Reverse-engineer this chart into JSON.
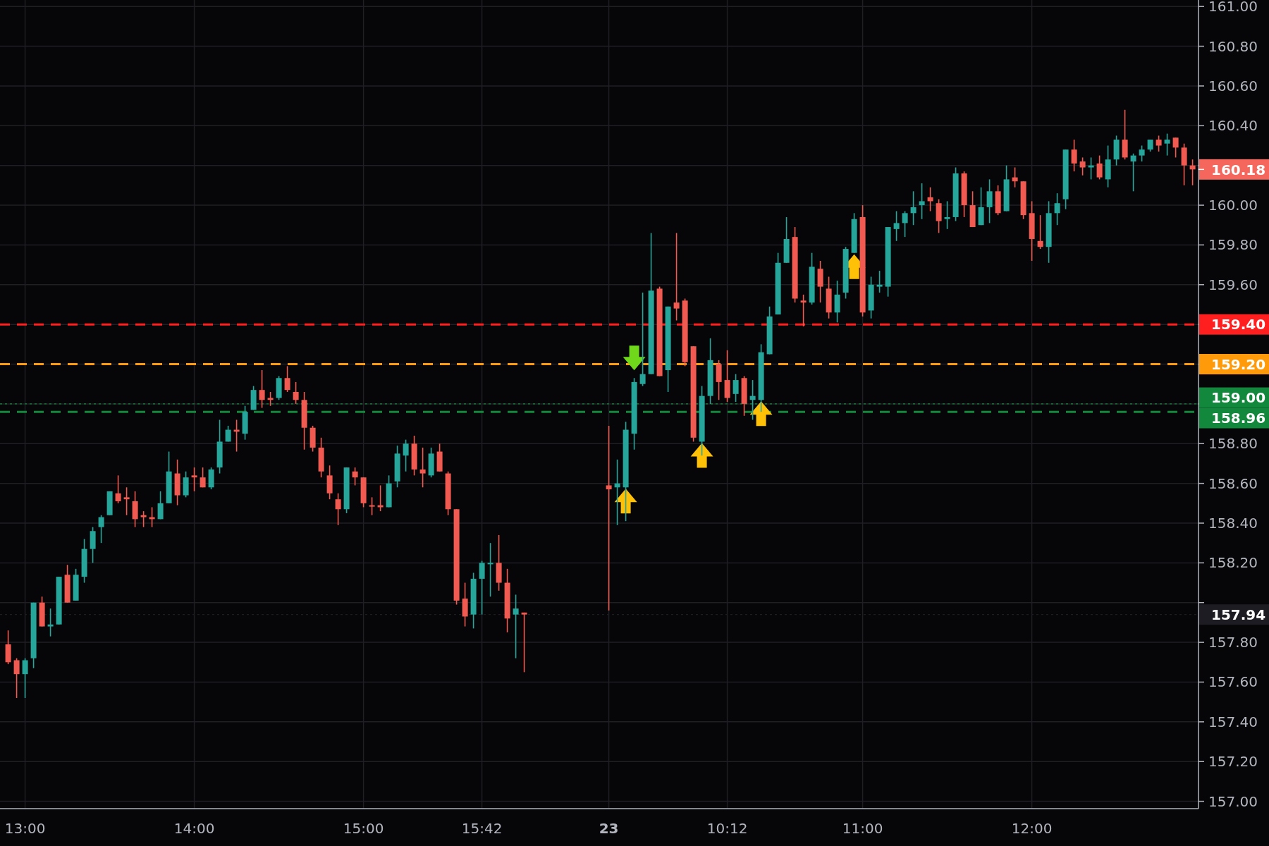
{
  "chart_data": {
    "type": "candlestick",
    "categories": [
      null,
      null,
      "13:00",
      null,
      null,
      null,
      null,
      null,
      null,
      null,
      null,
      null,
      null,
      null,
      null,
      null,
      null,
      null,
      null,
      null,
      null,
      null,
      "14:00",
      null,
      null,
      null,
      null,
      null,
      null,
      null,
      null,
      null,
      null,
      null,
      null,
      null,
      null,
      null,
      null,
      null,
      null,
      null,
      "15:00",
      null,
      null,
      null,
      null,
      null,
      null,
      null,
      null,
      null,
      null,
      null,
      null,
      null,
      "15:42",
      null,
      null,
      null,
      null,
      null,
      null,
      null,
      null,
      null,
      null,
      null,
      null,
      null,
      null,
      "23",
      null,
      null,
      null,
      null,
      null,
      null,
      null,
      null,
      null,
      null,
      null,
      null,
      null,
      "10:12",
      null,
      null,
      null,
      null,
      null,
      null,
      null,
      null,
      null,
      null,
      null,
      null,
      null,
      null,
      null,
      "11:00",
      null,
      null,
      null,
      null,
      null,
      null,
      null,
      null,
      null,
      null,
      null,
      null,
      null,
      null,
      null,
      null,
      null,
      null,
      null,
      "12:00",
      null,
      null,
      null,
      null,
      null,
      null,
      null,
      null,
      null,
      null,
      null,
      null,
      null,
      null,
      null,
      null,
      null,
      null,
      null
    ],
    "ohlc": [
      [
        157.79,
        157.86,
        157.69,
        157.7
      ],
      [
        157.71,
        157.72,
        157.52,
        157.64
      ],
      [
        157.64,
        157.72,
        157.52,
        157.71
      ],
      [
        157.72,
        158.0,
        157.67,
        158.0
      ],
      [
        158.0,
        158.03,
        157.88,
        157.88
      ],
      [
        157.88,
        157.97,
        157.83,
        157.89
      ],
      [
        157.89,
        158.13,
        157.89,
        158.13
      ],
      [
        158.14,
        158.19,
        158.0,
        158.0
      ],
      [
        158.01,
        158.17,
        158.01,
        158.14
      ],
      [
        158.13,
        158.32,
        158.1,
        158.27
      ],
      [
        158.27,
        158.38,
        158.2,
        158.36
      ],
      [
        158.38,
        158.44,
        158.3,
        158.43
      ],
      [
        158.44,
        158.56,
        158.44,
        158.56
      ],
      [
        158.55,
        158.64,
        158.5,
        158.51
      ],
      [
        158.53,
        158.58,
        158.44,
        158.52
      ],
      [
        158.51,
        158.56,
        158.38,
        158.42
      ],
      [
        158.44,
        158.46,
        158.38,
        158.43
      ],
      [
        158.43,
        158.48,
        158.38,
        158.42
      ],
      [
        158.42,
        158.56,
        158.42,
        158.5
      ],
      [
        158.5,
        158.76,
        158.5,
        158.66
      ],
      [
        158.65,
        158.72,
        158.49,
        158.54
      ],
      [
        158.54,
        158.66,
        158.53,
        158.63
      ],
      [
        158.64,
        158.68,
        158.56,
        158.63
      ],
      [
        158.63,
        158.68,
        158.58,
        158.58
      ],
      [
        158.58,
        158.68,
        158.57,
        158.67
      ],
      [
        158.68,
        158.92,
        158.65,
        158.81
      ],
      [
        158.81,
        158.89,
        158.81,
        158.87
      ],
      [
        158.87,
        158.92,
        158.76,
        158.86
      ],
      [
        158.85,
        158.99,
        158.82,
        158.96
      ],
      [
        158.97,
        159.09,
        158.97,
        159.07
      ],
      [
        159.07,
        159.17,
        158.98,
        159.02
      ],
      [
        159.03,
        159.06,
        158.99,
        159.02
      ],
      [
        159.03,
        159.14,
        159.02,
        159.13
      ],
      [
        159.13,
        159.19,
        159.06,
        159.07
      ],
      [
        159.06,
        159.11,
        159.0,
        159.02
      ],
      [
        159.02,
        159.06,
        158.77,
        158.88
      ],
      [
        158.88,
        158.89,
        158.76,
        158.78
      ],
      [
        158.78,
        158.83,
        158.63,
        158.66
      ],
      [
        158.64,
        158.69,
        158.52,
        158.55
      ],
      [
        158.52,
        158.55,
        158.39,
        158.47
      ],
      [
        158.47,
        158.68,
        158.45,
        158.68
      ],
      [
        158.66,
        158.68,
        158.59,
        158.63
      ],
      [
        158.63,
        158.63,
        158.48,
        158.5
      ],
      [
        158.49,
        158.53,
        158.44,
        158.49
      ],
      [
        158.49,
        158.59,
        158.46,
        158.48
      ],
      [
        158.48,
        158.64,
        158.48,
        158.6
      ],
      [
        158.61,
        158.79,
        158.58,
        158.75
      ],
      [
        158.74,
        158.82,
        158.66,
        158.8
      ],
      [
        158.8,
        158.84,
        158.64,
        158.67
      ],
      [
        158.67,
        158.78,
        158.58,
        158.65
      ],
      [
        158.64,
        158.78,
        158.63,
        158.75
      ],
      [
        158.76,
        158.8,
        158.66,
        158.66
      ],
      [
        158.65,
        158.66,
        158.44,
        158.47
      ],
      [
        158.47,
        158.47,
        157.99,
        158.01
      ],
      [
        158.02,
        158.1,
        157.88,
        157.93
      ],
      [
        157.94,
        158.15,
        157.87,
        158.12
      ],
      [
        158.12,
        158.21,
        157.94,
        158.2
      ],
      [
        158.2,
        158.3,
        158.03,
        158.2
      ],
      [
        158.2,
        158.34,
        158.06,
        158.1
      ],
      [
        158.1,
        158.17,
        157.85,
        157.92
      ],
      [
        157.94,
        158.04,
        157.72,
        157.97
      ],
      [
        157.95,
        157.95,
        157.65,
        157.94
      ],
      null,
      null,
      null,
      null,
      null,
      null,
      null,
      null,
      null,
      [
        158.59,
        158.89,
        157.96,
        158.57
      ],
      [
        158.58,
        158.72,
        158.39,
        158.6
      ],
      [
        158.58,
        158.91,
        158.41,
        158.87
      ],
      [
        158.85,
        159.13,
        158.77,
        159.11
      ],
      [
        159.1,
        159.56,
        159.09,
        159.15
      ],
      [
        159.15,
        159.86,
        159.15,
        159.57
      ],
      [
        159.58,
        159.59,
        159.14,
        159.14
      ],
      [
        159.17,
        159.49,
        159.06,
        159.49
      ],
      [
        159.51,
        159.86,
        159.42,
        159.48
      ],
      [
        159.52,
        159.53,
        159.19,
        159.21
      ],
      [
        159.29,
        159.29,
        158.81,
        158.83
      ],
      [
        158.81,
        159.09,
        158.74,
        159.04
      ],
      [
        159.04,
        159.33,
        159.0,
        159.22
      ],
      [
        159.2,
        159.22,
        159.02,
        159.11
      ],
      [
        159.12,
        159.27,
        159.01,
        159.03
      ],
      [
        159.05,
        159.15,
        159.01,
        159.12
      ],
      [
        159.13,
        159.14,
        158.94,
        159.0
      ],
      [
        159.02,
        159.12,
        158.92,
        159.04
      ],
      [
        159.02,
        159.3,
        158.96,
        159.26
      ],
      [
        159.25,
        159.49,
        159.25,
        159.44
      ],
      [
        159.45,
        159.76,
        159.45,
        159.71
      ],
      [
        159.71,
        159.94,
        159.71,
        159.83
      ],
      [
        159.84,
        159.89,
        159.51,
        159.53
      ],
      [
        159.52,
        159.55,
        159.39,
        159.51
      ],
      [
        159.51,
        159.76,
        159.5,
        159.69
      ],
      [
        159.68,
        159.72,
        159.51,
        159.59
      ],
      [
        159.58,
        159.64,
        159.43,
        159.46
      ],
      [
        159.46,
        159.62,
        159.41,
        159.55
      ],
      [
        159.56,
        159.79,
        159.53,
        159.78
      ],
      [
        159.76,
        159.96,
        159.76,
        159.93
      ],
      [
        159.94,
        160.0,
        159.44,
        159.46
      ],
      [
        159.47,
        159.64,
        159.43,
        159.6
      ],
      [
        159.59,
        159.67,
        159.56,
        159.6
      ],
      [
        159.59,
        159.89,
        159.54,
        159.89
      ],
      [
        159.88,
        159.97,
        159.82,
        159.91
      ],
      [
        159.91,
        159.97,
        159.84,
        159.96
      ],
      [
        159.96,
        160.07,
        159.9,
        159.99
      ],
      [
        160.0,
        160.11,
        159.93,
        160.02
      ],
      [
        160.04,
        160.09,
        159.97,
        160.02
      ],
      [
        160.01,
        160.03,
        159.86,
        159.92
      ],
      [
        159.93,
        160.02,
        159.88,
        159.94
      ],
      [
        159.94,
        160.19,
        159.92,
        160.16
      ],
      [
        160.16,
        160.17,
        159.94,
        160.0
      ],
      [
        160.0,
        160.07,
        159.89,
        159.89
      ],
      [
        159.9,
        160.09,
        159.9,
        159.99
      ],
      [
        159.99,
        160.13,
        159.91,
        160.07
      ],
      [
        160.07,
        160.1,
        159.95,
        159.96
      ],
      [
        159.97,
        160.2,
        159.97,
        160.13
      ],
      [
        160.14,
        160.19,
        160.09,
        160.12
      ],
      [
        160.12,
        160.12,
        159.93,
        159.95
      ],
      [
        159.96,
        160.02,
        159.72,
        159.83
      ],
      [
        159.82,
        159.95,
        159.78,
        159.79
      ],
      [
        159.79,
        160.02,
        159.71,
        159.96
      ],
      [
        159.96,
        160.06,
        159.9,
        160.01
      ],
      [
        160.03,
        160.28,
        159.98,
        160.28
      ],
      [
        160.28,
        160.33,
        160.17,
        160.21
      ],
      [
        160.22,
        160.24,
        160.15,
        160.19
      ],
      [
        160.19,
        160.24,
        160.13,
        160.2
      ],
      [
        160.21,
        160.25,
        160.13,
        160.14
      ],
      [
        160.13,
        160.3,
        160.09,
        160.23
      ],
      [
        160.23,
        160.35,
        160.2,
        160.33
      ],
      [
        160.33,
        160.48,
        160.23,
        160.24
      ],
      [
        160.22,
        160.26,
        160.07,
        160.25
      ],
      [
        160.25,
        160.3,
        160.22,
        160.28
      ],
      [
        160.28,
        160.33,
        160.27,
        160.33
      ],
      [
        160.33,
        160.35,
        160.27,
        160.3
      ],
      [
        160.31,
        160.36,
        160.25,
        160.33
      ],
      [
        160.34,
        160.34,
        160.24,
        160.29
      ],
      [
        160.29,
        160.31,
        160.1,
        160.2
      ],
      [
        160.2,
        160.23,
        160.1,
        160.18
      ]
    ],
    "colors": [
      "#f05a50",
      "#f05a50",
      "#26a69a",
      "#26a69a",
      "#f05a50",
      "#26a69a",
      "#26a69a",
      "#f05a50",
      "#26a69a",
      "#26a69a",
      "#26a69a",
      "#26a69a",
      "#26a69a",
      "#f05a50",
      "#f05a50",
      "#f05a50",
      "#f05a50",
      "#f05a50",
      "#26a69a",
      "#26a69a",
      "#f05a50",
      "#26a69a",
      "#f05a50",
      "#f05a50",
      "#26a69a",
      "#26a69a",
      "#26a69a",
      "#f05a50",
      "#26a69a",
      "#26a69a",
      "#f05a50",
      "#f05a50",
      "#26a69a",
      "#f05a50",
      "#f05a50",
      "#f05a50",
      "#f05a50",
      "#f05a50",
      "#f05a50",
      "#f05a50",
      "#26a69a",
      "#f05a50",
      "#f05a50",
      "#f05a50",
      "#f05a50",
      "#26a69a",
      "#26a69a",
      "#26a69a",
      "#f05a50",
      "#f05a50",
      "#26a69a",
      "#f05a50",
      "#f05a50",
      "#f05a50",
      "#f05a50",
      "#26a69a",
      "#26a69a",
      "#26a69a",
      "#f05a50",
      "#f05a50",
      "#26a69a",
      "#f05a50",
      null,
      null,
      null,
      null,
      null,
      null,
      null,
      null,
      null,
      "#f05a50",
      "#26a69a",
      "#26a69a",
      "#26a69a",
      "#26a69a",
      "#26a69a",
      "#f05a50",
      "#26a69a",
      "#f05a50",
      "#f05a50",
      "#f05a50",
      "#26a69a",
      "#26a69a",
      "#f05a50",
      "#f05a50",
      "#26a69a",
      "#f05a50",
      "#26a69a",
      "#26a69a",
      "#26a69a",
      "#26a69a",
      "#26a69a",
      "#f05a50",
      "#f05a50",
      "#26a69a",
      "#f05a50",
      "#f05a50",
      "#26a69a",
      "#26a69a",
      "#26a69a",
      "#f05a50",
      "#26a69a",
      "#26a69a",
      "#26a69a",
      "#26a69a",
      "#26a69a",
      "#26a69a",
      "#26a69a",
      "#f05a50",
      "#f05a50",
      "#26a69a",
      "#26a69a",
      "#f05a50",
      "#f05a50",
      "#26a69a",
      "#26a69a",
      "#f05a50",
      "#26a69a",
      "#f05a50",
      "#f05a50",
      "#f05a50",
      "#f05a50",
      "#26a69a",
      "#26a69a",
      "#26a69a",
      "#f05a50",
      "#f05a50",
      "#26a69a",
      "#f05a50",
      "#26a69a",
      "#26a69a",
      "#f05a50",
      "#26a69a",
      "#26a69a",
      "#26a69a",
      "#f05a50",
      "#26a69a",
      "#f05a50",
      "#f05a50",
      "#f05a50"
    ],
    "ylim": [
      157,
      161
    ],
    "yticks": [
      {
        "value": 157,
        "label": "157.00"
      },
      {
        "value": 157.2,
        "label": "157.20"
      },
      {
        "value": 157.4,
        "label": "157.40"
      },
      {
        "value": 157.6,
        "label": "157.60"
      },
      {
        "value": 157.8,
        "label": "157.80"
      },
      {
        "value": 158,
        "label": null
      },
      {
        "value": 158.2,
        "label": "158.20"
      },
      {
        "value": 158.4,
        "label": "158.40"
      },
      {
        "value": 158.6,
        "label": "158.60"
      },
      {
        "value": 158.8,
        "label": "158.80"
      },
      {
        "value": 159,
        "label": null
      },
      {
        "value": 159.2,
        "label": null
      },
      {
        "value": 159.4,
        "label": null
      },
      {
        "value": 159.6,
        "label": "159.60"
      },
      {
        "value": 159.8,
        "label": "159.80"
      },
      {
        "value": 160,
        "label": "160.00"
      },
      {
        "value": 160.2,
        "label": null
      },
      {
        "value": 160.4,
        "label": "160.40"
      },
      {
        "value": 160.6,
        "label": "160.60"
      },
      {
        "value": 160.8,
        "label": "160.80"
      },
      {
        "value": 161,
        "label": "161.00"
      }
    ],
    "ref_lines": [
      {
        "axis": "y",
        "value": 159.4,
        "label": "159.40",
        "color": "#ff1f1f",
        "line_style": "dashed"
      },
      {
        "axis": "y",
        "value": 159.2,
        "label": "159.20",
        "color": "#ff9a0a",
        "line_style": "dashed"
      },
      {
        "axis": "y",
        "value": 159.0,
        "label": "159.00",
        "color": "#12883c",
        "line_style": "dotted"
      },
      {
        "axis": "y",
        "value": 158.96,
        "label": "158.96",
        "color": "#12883c",
        "line_style": "dashed"
      },
      {
        "axis": "y",
        "value": 157.94,
        "label": "157.94",
        "color": "#1c1c22",
        "line_style": "dotted"
      }
    ],
    "annotations": [
      "160.18"
    ],
    "grid": true
  }
}
